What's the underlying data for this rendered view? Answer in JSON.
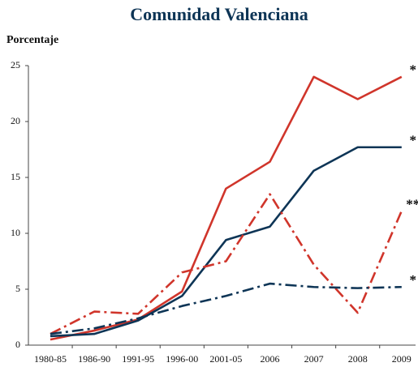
{
  "chart_data": {
    "type": "line",
    "title": "Comunidad Valenciana",
    "y_label": "Porcentaje",
    "categories": [
      "1980-85",
      "1986-90",
      "1991-95",
      "1996-00",
      "2001-05",
      "2006",
      "2007",
      "2008",
      "2009"
    ],
    "series": [
      {
        "color": "#d0352b",
        "style": "solid",
        "values": [
          0.5,
          1.3,
          2.3,
          4.8,
          14.0,
          16.4,
          24.0,
          22.0,
          24.0
        ]
      },
      {
        "color": "#0e3556",
        "style": "solid",
        "values": [
          0.8,
          1.0,
          2.2,
          4.4,
          9.4,
          10.6,
          15.6,
          17.7,
          17.7
        ]
      },
      {
        "color": "#d0352b",
        "style": "dashdot",
        "values": [
          1.0,
          3.0,
          2.8,
          6.5,
          7.5,
          13.5,
          7.2,
          2.9,
          12.0
        ]
      },
      {
        "color": "#0e3556",
        "style": "dashdot",
        "values": [
          1.0,
          1.5,
          2.4,
          3.5,
          4.4,
          5.5,
          5.2,
          5.1,
          5.2
        ]
      }
    ],
    "annotations": [
      "*",
      "*",
      "**",
      "*"
    ],
    "ylim": [
      0,
      25
    ],
    "yticks": [
      0,
      5,
      10,
      15,
      20,
      25
    ],
    "grid": false
  }
}
